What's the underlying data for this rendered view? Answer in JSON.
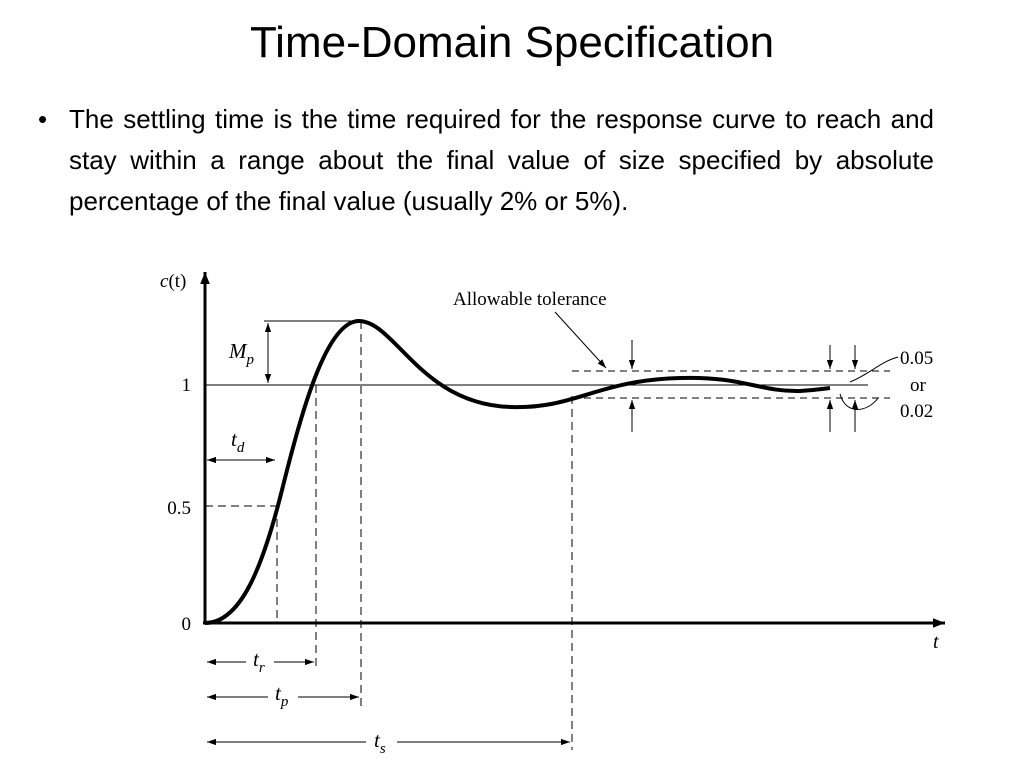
{
  "slide": {
    "title": "Time-Domain Specification",
    "bullet_symbol": "•",
    "bullet_text": "The settling time is the time required for the response curve to reach and stay within a range about the final value of size specified by absolute percentage of the final value (usually 2% or 5%)."
  },
  "diagram": {
    "y_axis_label_main": "c",
    "y_axis_label_arg": "(t)",
    "x_axis_label": "t",
    "y_ticks": [
      "1",
      "0.5",
      "0"
    ],
    "annotation_tolerance": "Allowable tolerance",
    "tolerance_values": [
      "0.05",
      "or",
      "0.02"
    ],
    "mp": {
      "main": "M",
      "sub": "p"
    },
    "td": {
      "main": "t",
      "sub": "d"
    },
    "tr": {
      "main": "t",
      "sub": "r"
    },
    "tp": {
      "main": "t",
      "sub": "p"
    },
    "ts": {
      "main": "t",
      "sub": "s"
    }
  }
}
